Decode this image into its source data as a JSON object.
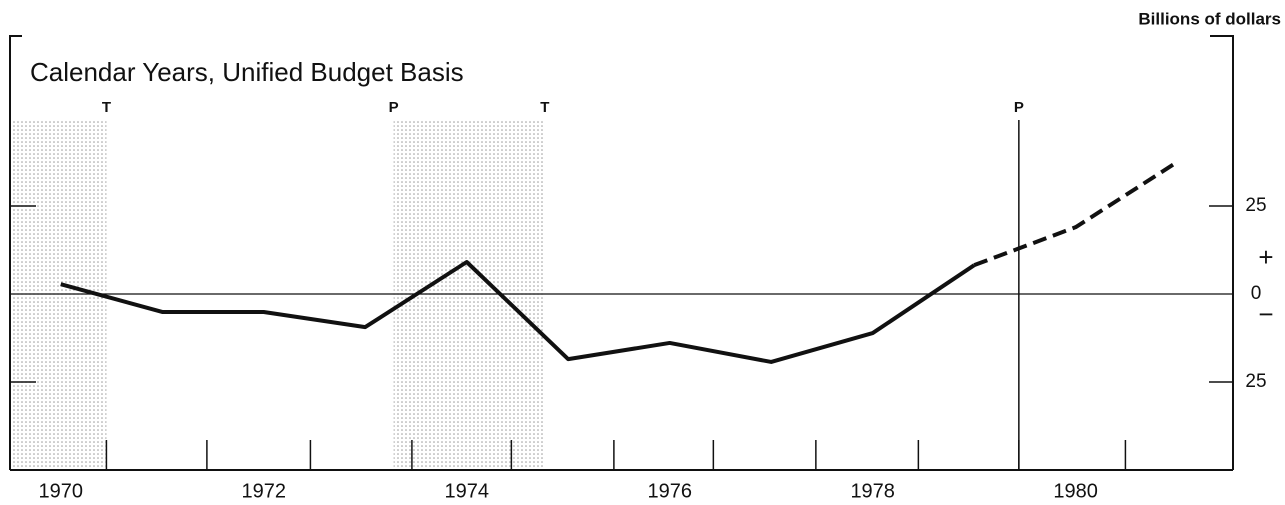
{
  "chart_data": {
    "type": "line",
    "title": "Calendar Years, Unified Budget Basis",
    "y_axis_label": "Billions of dollars",
    "x": [
      1970,
      1971,
      1972,
      1973,
      1974,
      1975,
      1976,
      1977,
      1978,
      1979,
      1980,
      1981
    ],
    "series": [
      {
        "color": "#111111",
        "values": [
          2.8,
          -5.1,
          -5.1,
          -9.4,
          9.1,
          -18.5,
          -13.9,
          -19.3,
          -11.1,
          8.2,
          19.0,
          37.5
        ]
      }
    ],
    "projected_from": 1979,
    "xlim": [
      1969.5,
      1981.55
    ],
    "xticks": [
      1970,
      1972,
      1974,
      1976,
      1978,
      1980
    ],
    "xminorticks": [
      1970.45,
      1971.44,
      1972.46,
      1973.46,
      1974.44,
      1975.45,
      1976.43,
      1977.44,
      1978.45,
      1979.44,
      1980.49
    ],
    "ylim": [
      -50,
      73.6
    ],
    "yticks": [
      {
        "value": -25,
        "label": "25"
      },
      0,
      25
    ],
    "sign_labels": {
      "above": "+",
      "below": "−"
    },
    "cycle_markers": [
      {
        "x": 1970.45,
        "label": "T"
      },
      {
        "x": 1973.28,
        "label": "P"
      },
      {
        "x": 1974.77,
        "label": "T"
      },
      {
        "x": 1979.44,
        "label": "P"
      }
    ]
  }
}
